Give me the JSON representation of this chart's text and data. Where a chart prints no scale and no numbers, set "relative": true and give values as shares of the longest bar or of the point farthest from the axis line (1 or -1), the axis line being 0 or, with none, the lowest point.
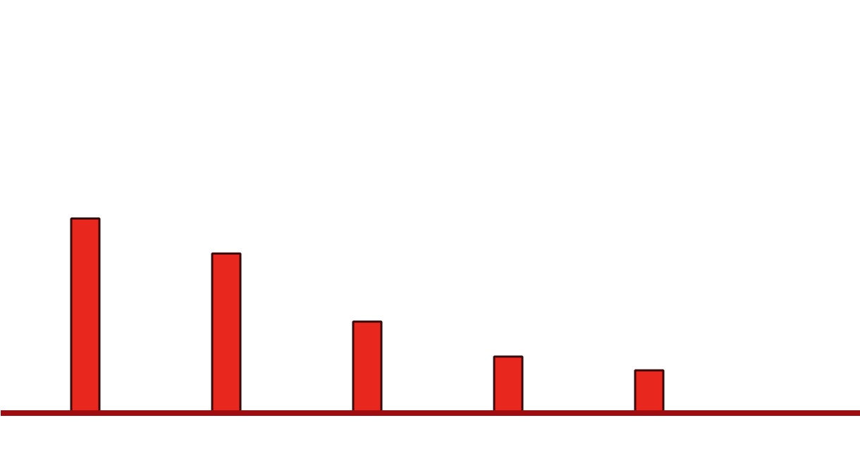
{
  "chart_data": {
    "type": "bar",
    "relative": true,
    "categories": [
      null,
      null,
      null,
      null,
      null
    ],
    "values": [
      1,
      0.82,
      0.47,
      0.29,
      0.22
    ],
    "color": "#e8281e",
    "grid": false
  }
}
